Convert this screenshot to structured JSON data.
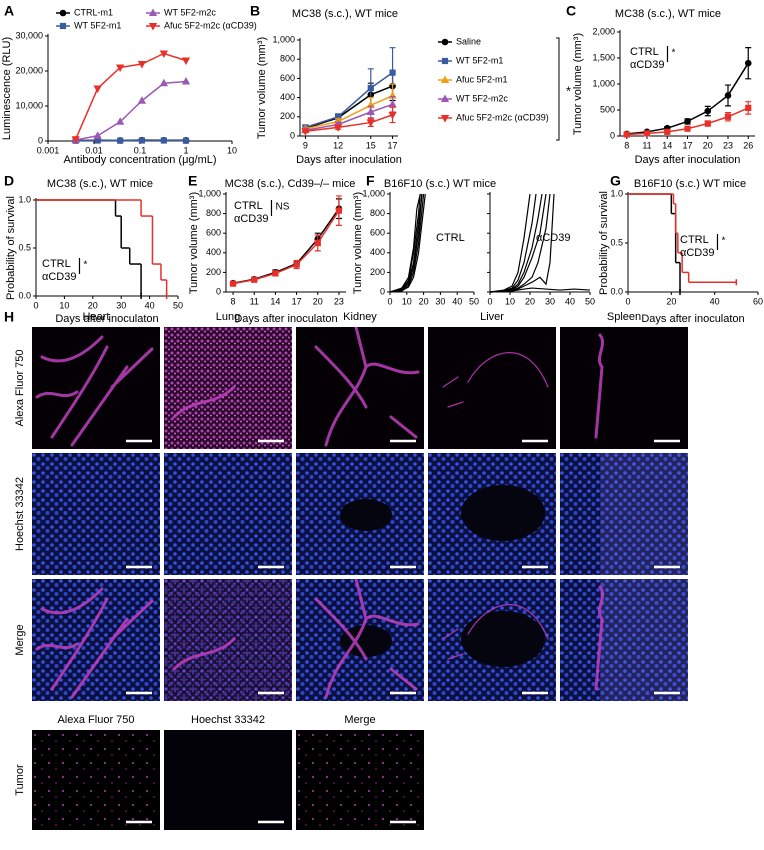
{
  "chart_data": [
    {
      "panel_label": "A",
      "type": "line",
      "xscale": "log",
      "x": [
        0.004,
        0.012,
        0.037,
        0.11,
        0.33,
        1
      ],
      "xlim": [
        0.001,
        10
      ],
      "xticks": [
        0.001,
        0.01,
        0.1,
        1,
        10
      ],
      "ylim": [
        0,
        30000
      ],
      "yticks": [
        0,
        {
          "value": 10000,
          "label": "10,000"
        },
        {
          "value": 20000,
          "label": "20,000"
        },
        {
          "value": 30000,
          "label": "30,000"
        }
      ],
      "x_label": "Antibody concentration (μg/mL)",
      "y_label": "Luminescence (RLU)",
      "series": [
        {
          "name": "CTRL-m1",
          "color": "#000000",
          "marker": "circle",
          "values": [
            150,
            200,
            150,
            250,
            200,
            200
          ]
        },
        {
          "name": "WT 5F2-m1",
          "color": "#3a5ba0",
          "marker": "square",
          "values": [
            100,
            150,
            100,
            150,
            150,
            100
          ]
        },
        {
          "name": "WT 5F2-m2c",
          "color": "#9b59b6",
          "marker": "triangle",
          "values": [
            300,
            1500,
            5500,
            11500,
            16500,
            17000
          ]
        },
        {
          "name": "Afuc 5F2-m2c (αCD39)",
          "color": "#e8302a",
          "marker": "triangle-down",
          "values": [
            500,
            15000,
            21000,
            22000,
            25000,
            23000
          ]
        }
      ]
    },
    {
      "panel_label": "B",
      "type": "line",
      "title": "MC38 (s.c.), WT mice",
      "x": [
        9,
        12,
        15,
        17
      ],
      "xlim": [
        8.5,
        17.5
      ],
      "xticks": [
        9,
        12,
        15,
        17
      ],
      "ylim": [
        0,
        1000
      ],
      "yticks": [
        0,
        200,
        400,
        600,
        800,
        {
          "value": 1000,
          "label": "1,000"
        }
      ],
      "x_label": "Days after inoculation",
      "y_label": "Tumor volume (mm³)",
      "annotation": "*",
      "series": [
        {
          "name": "Saline",
          "color": "#000000",
          "marker": "circle",
          "values": [
            80,
            190,
            430,
            520
          ],
          "errors": [
            15,
            40,
            120,
            150
          ]
        },
        {
          "name": "WT 5F2-m1",
          "color": "#3a5ba0",
          "marker": "square",
          "values": [
            90,
            200,
            500,
            660
          ],
          "errors": [
            15,
            30,
            200,
            260
          ]
        },
        {
          "name": "Afuc 5F2-m1",
          "color": "#f39c12",
          "marker": "triangle",
          "values": [
            75,
            150,
            320,
            420
          ],
          "errors": [
            10,
            30,
            80,
            120
          ]
        },
        {
          "name": "WT 5F2-m2c",
          "color": "#9b59b6",
          "marker": "triangle",
          "values": [
            60,
            120,
            250,
            330
          ],
          "errors": [
            10,
            20,
            60,
            80
          ]
        },
        {
          "name": "Afuc 5F2-m2c (αCD39)",
          "color": "#e8302a",
          "marker": "triangle-down",
          "values": [
            50,
            90,
            140,
            220
          ],
          "errors": [
            8,
            20,
            40,
            80
          ]
        }
      ]
    },
    {
      "panel_label": "C",
      "type": "line",
      "title": "MC38 (s.c.), WT mice",
      "x": [
        8,
        11,
        14,
        17,
        20,
        23,
        26
      ],
      "xlim": [
        7,
        27
      ],
      "xticks": [
        8,
        11,
        14,
        17,
        20,
        23,
        26
      ],
      "ylim": [
        0,
        2000
      ],
      "yticks": [
        0,
        500,
        {
          "value": 1000,
          "label": "1,000"
        },
        {
          "value": 1500,
          "label": "1,500"
        },
        {
          "value": 2000,
          "label": "2,000"
        }
      ],
      "x_label": "Days after inoculation",
      "y_label": "Tumor volume (mm³)",
      "annotation": "*",
      "series": [
        {
          "name": "CTRL",
          "color": "#000000",
          "marker": "circle",
          "values": [
            40,
            80,
            150,
            280,
            480,
            780,
            1400
          ],
          "errors": [
            10,
            15,
            30,
            50,
            90,
            200,
            300
          ]
        },
        {
          "name": "αCD39",
          "color": "#e8302a",
          "marker": "square",
          "values": [
            30,
            50,
            80,
            140,
            240,
            370,
            540
          ],
          "errors": [
            8,
            10,
            20,
            30,
            50,
            80,
            120
          ]
        }
      ]
    },
    {
      "panel_label": "D",
      "type": "survival",
      "title": "MC38 (s.c.), WT mice",
      "xlim": [
        0,
        50
      ],
      "xticks": [
        0,
        10,
        20,
        30,
        40,
        50
      ],
      "ylim": [
        0,
        1
      ],
      "yticks": [
        {
          "value": 0,
          "label": "0.0"
        },
        0.5,
        {
          "value": 1,
          "label": "1.0"
        }
      ],
      "x_label": "Days after inoculaton",
      "y_label": "Probability of survival",
      "annotation": "*",
      "series": [
        {
          "name": "CTRL",
          "color": "#000000",
          "x": [
            0,
            28,
            30,
            33,
            37
          ],
          "values": [
            1,
            0.833,
            0.5,
            0.333,
            0
          ]
        },
        {
          "name": "αCD39",
          "color": "#e8302a",
          "x": [
            0,
            37,
            41,
            44,
            46
          ],
          "values": [
            1,
            0.833,
            0.333,
            0.167,
            0
          ]
        }
      ]
    },
    {
      "panel_label": "E",
      "type": "line",
      "title": "MC38 (s.c.), Cd39–/– mice",
      "x": [
        8,
        11,
        14,
        17,
        20,
        23
      ],
      "xlim": [
        7,
        24
      ],
      "xticks": [
        8,
        11,
        14,
        17,
        20,
        23
      ],
      "ylim": [
        0,
        1000
      ],
      "yticks": [
        0,
        200,
        400,
        600,
        800,
        {
          "value": 1000,
          "label": "1,000"
        }
      ],
      "x_label": "Days after inoculaton",
      "y_label": "Tumor volume (mm³)",
      "annotation": "NS",
      "series": [
        {
          "name": "CTRL",
          "color": "#000000",
          "marker": "circle",
          "values": [
            90,
            130,
            200,
            290,
            540,
            850
          ],
          "errors": [
            10,
            15,
            25,
            30,
            60,
            100
          ]
        },
        {
          "name": "αCD39",
          "color": "#e8302a",
          "marker": "square",
          "values": [
            85,
            125,
            190,
            280,
            500,
            830
          ],
          "errors": [
            10,
            15,
            25,
            40,
            80,
            150
          ]
        }
      ]
    },
    {
      "panel_label": "F",
      "type": "spaghetti",
      "title": "B16F10 (s.c.) WT mice",
      "xlim": [
        0,
        50
      ],
      "xticks": [
        0,
        10,
        20,
        30,
        40,
        50
      ],
      "ylim": [
        0,
        1000
      ],
      "yticks": [
        0,
        200,
        400,
        600,
        800,
        {
          "value": 1000,
          "label": "1,000"
        }
      ],
      "y_label": "Tumor volume (mm³)",
      "line_color": "#000000",
      "panels": [
        {
          "name": "CTRL",
          "color": "#000000",
          "lines": [
            {
              "x": [
                0,
                7,
                11,
                14,
                17,
                19
              ],
              "values": [
                0,
                20,
                80,
                250,
                600,
                1000
              ]
            },
            {
              "x": [
                0,
                7,
                11,
                14,
                17,
                18
              ],
              "values": [
                0,
                30,
                120,
                400,
                800,
                1000
              ]
            },
            {
              "x": [
                0,
                7,
                11,
                14,
                17,
                20
              ],
              "values": [
                0,
                10,
                60,
                200,
                500,
                1000
              ]
            },
            {
              "x": [
                0,
                7,
                11,
                14,
                16,
                18
              ],
              "values": [
                0,
                40,
                150,
                450,
                850,
                1000
              ]
            },
            {
              "x": [
                0,
                7,
                11,
                14,
                17,
                21
              ],
              "values": [
                0,
                15,
                50,
                150,
                400,
                1000
              ]
            },
            {
              "x": [
                0,
                7,
                11,
                14,
                17,
                19
              ],
              "values": [
                0,
                25,
                100,
                300,
                700,
                1000
              ]
            }
          ]
        },
        {
          "name": "αCD39",
          "color": "#e8302a",
          "lines": [
            {
              "x": [
                0,
                7,
                11,
                14,
                17,
                20
              ],
              "values": [
                0,
                20,
                60,
                200,
                550,
                1000
              ]
            },
            {
              "x": [
                0,
                7,
                11,
                14,
                17,
                21,
                23
              ],
              "values": [
                0,
                15,
                40,
                120,
                300,
                700,
                1000
              ]
            },
            {
              "x": [
                0,
                7,
                11,
                14,
                17,
                21,
                24,
                26
              ],
              "values": [
                0,
                10,
                30,
                80,
                200,
                450,
                750,
                1000
              ]
            },
            {
              "x": [
                0,
                7,
                11,
                14,
                17,
                21,
                25,
                28
              ],
              "values": [
                0,
                10,
                25,
                60,
                150,
                350,
                600,
                1000
              ]
            },
            {
              "x": [
                0,
                7,
                11,
                14,
                17,
                21,
                24,
                28,
                30
              ],
              "values": [
                0,
                5,
                20,
                40,
                80,
                150,
                300,
                650,
                1000
              ]
            },
            {
              "x": [
                0,
                7,
                11,
                14,
                17,
                21,
                25,
                28,
                30,
                32
              ],
              "values": [
                0,
                5,
                15,
                30,
                60,
                100,
                150,
                80,
                300,
                1000
              ]
            },
            {
              "x": [
                0,
                7,
                11,
                14,
                17,
                21,
                28,
                35,
                42,
                50
              ],
              "values": [
                0,
                5,
                10,
                20,
                30,
                40,
                30,
                20,
                30,
                20
              ]
            }
          ]
        }
      ]
    },
    {
      "panel_label": "G",
      "type": "survival",
      "title": "B16F10 (s.c.) WT mice",
      "xlim": [
        0,
        60
      ],
      "xticks": [
        0,
        20,
        40,
        60
      ],
      "ylim": [
        0,
        1
      ],
      "yticks": [
        {
          "value": 0,
          "label": "0.0"
        },
        0.5,
        {
          "value": 1,
          "label": "1.0"
        }
      ],
      "x_label": "Days after inoculaton",
      "y_label": "Probability of survival",
      "annotation": "*",
      "series": [
        {
          "name": "CTRL",
          "color": "#000000",
          "x": [
            0,
            20,
            22,
            24
          ],
          "values": [
            1,
            0.8,
            0.3,
            0
          ]
        },
        {
          "name": "αCD39",
          "color": "#e8302a",
          "x": [
            0,
            21,
            22,
            23,
            25,
            28,
            50
          ],
          "values": [
            1,
            0.9,
            0.6,
            0.4,
            0.2,
            0.1,
            0.1
          ]
        }
      ]
    }
  ],
  "panel_h": {
    "label": "H",
    "columns": [
      "Heart",
      "Lung",
      "Kidney",
      "Liver",
      "Spleen"
    ],
    "rows": [
      "Alexa Fluor 750",
      "Hoechst 33342",
      "Merge"
    ],
    "tumor": {
      "columns": [
        "Alexa Fluor 750",
        "Hoechst 33342",
        "Merge"
      ],
      "row": "Tumor"
    }
  }
}
